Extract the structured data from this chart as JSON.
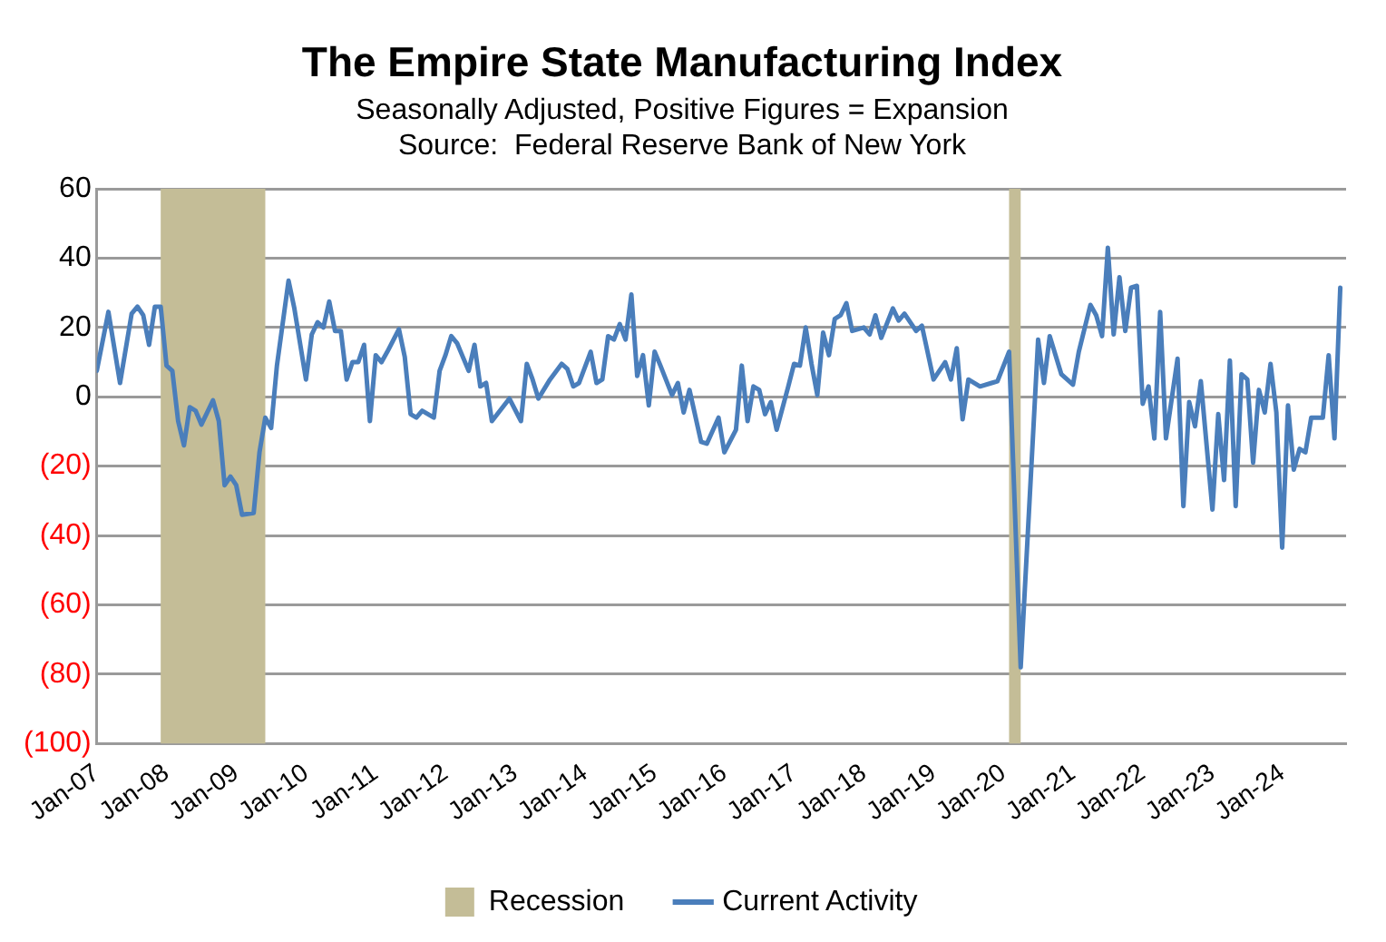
{
  "chart_data": {
    "type": "line",
    "title": "The Empire State Manufacturing Index",
    "subtitle": "Seasonally Adjusted, Positive Figures = Expansion",
    "annotations": [
      "Source:  Federal Reserve Bank of New York"
    ],
    "x": [
      "2007-01",
      "2007-03",
      "2007-05",
      "2007-07",
      "2007-08",
      "2007-09",
      "2007-10",
      "2007-11",
      "2007-12",
      "2008-01",
      "2008-02",
      "2008-03",
      "2008-04",
      "2008-05",
      "2008-06",
      "2008-07",
      "2008-09",
      "2008-10",
      "2008-11",
      "2008-12",
      "2009-01",
      "2009-02",
      "2009-04",
      "2009-05",
      "2009-06",
      "2009-07",
      "2009-08",
      "2009-10",
      "2009-11",
      "2010-01",
      "2010-02",
      "2010-03",
      "2010-04",
      "2010-05",
      "2010-06",
      "2010-07",
      "2010-08",
      "2010-09",
      "2010-10",
      "2010-11",
      "2010-12",
      "2011-01",
      "2011-02",
      "2011-03",
      "2011-05",
      "2011-06",
      "2011-07",
      "2011-08",
      "2011-09",
      "2011-11",
      "2011-12",
      "2012-01",
      "2012-02",
      "2012-03",
      "2012-05",
      "2012-06",
      "2012-07",
      "2012-08",
      "2012-09",
      "2012-12",
      "2013-02",
      "2013-03",
      "2013-04",
      "2013-05",
      "2013-07",
      "2013-09",
      "2013-10",
      "2013-11",
      "2013-12",
      "2014-02",
      "2014-03",
      "2014-04",
      "2014-05",
      "2014-06",
      "2014-07",
      "2014-08",
      "2014-09",
      "2014-10",
      "2014-11",
      "2014-12",
      "2015-01",
      "2015-02",
      "2015-04",
      "2015-05",
      "2015-06",
      "2015-07",
      "2015-09",
      "2015-10",
      "2015-12",
      "2016-01",
      "2016-03",
      "2016-04",
      "2016-05",
      "2016-06",
      "2016-07",
      "2016-08",
      "2016-09",
      "2016-10",
      "2016-12",
      "2017-01",
      "2017-02",
      "2017-03",
      "2017-04",
      "2017-05",
      "2017-06",
      "2017-07",
      "2017-08",
      "2017-09",
      "2017-10",
      "2017-11",
      "2018-01",
      "2018-02",
      "2018-03",
      "2018-04",
      "2018-06",
      "2018-07",
      "2018-08",
      "2018-10",
      "2018-11",
      "2019-01",
      "2019-03",
      "2019-04",
      "2019-05",
      "2019-06",
      "2019-07",
      "2019-09",
      "2019-11",
      "2019-12",
      "2020-02",
      "2020-04",
      "2020-07",
      "2020-08",
      "2020-09",
      "2020-11",
      "2021-01",
      "2021-02",
      "2021-04",
      "2021-05",
      "2021-06",
      "2021-07",
      "2021-08",
      "2021-09",
      "2021-10",
      "2021-11",
      "2021-12",
      "2022-01",
      "2022-02",
      "2022-03",
      "2022-04",
      "2022-05",
      "2022-07",
      "2022-08",
      "2022-09",
      "2022-10",
      "2022-11",
      "2023-01",
      "2023-02",
      "2023-03",
      "2023-04",
      "2023-05",
      "2023-06",
      "2023-07",
      "2023-08",
      "2023-09",
      "2023-10",
      "2023-11",
      "2023-12",
      "2024-01",
      "2024-02",
      "2024-03",
      "2024-04",
      "2024-05",
      "2024-06",
      "2024-08",
      "2024-09",
      "2024-10",
      "2024-11"
    ],
    "series": [
      {
        "name": "Current Activity",
        "color": "#4a7ebb",
        "values": [
          7.5,
          24.5,
          4,
          24,
          26,
          23.5,
          15,
          26,
          26,
          9,
          7.5,
          -7,
          -14,
          -3,
          -4,
          -8,
          -1,
          -7,
          -25.5,
          -23,
          -25.5,
          -34,
          -33.5,
          -16,
          -6,
          -9,
          9,
          33.5,
          25.5,
          5,
          18,
          21.5,
          20,
          27.5,
          19,
          19,
          5,
          10,
          10,
          15,
          -7,
          12,
          10,
          13,
          19.5,
          11.5,
          -5,
          -6,
          -4,
          -6,
          7.5,
          12,
          17.5,
          15.5,
          7.5,
          15,
          3,
          4,
          -7,
          -0.5,
          -7,
          9.5,
          5,
          -0.5,
          5,
          9.5,
          8,
          3,
          4,
          13,
          4,
          5,
          17.5,
          16.5,
          21,
          16.5,
          29.5,
          6,
          12,
          -2.5,
          13,
          9,
          0.5,
          4,
          -4.5,
          2,
          -13,
          -13.5,
          -6,
          -16,
          -9.5,
          9,
          -7,
          3,
          2,
          -5,
          -1.5,
          -9.5,
          3,
          9.5,
          9,
          20,
          9.5,
          0.5,
          18.5,
          12,
          22.5,
          23.5,
          27,
          19,
          20,
          18,
          23.5,
          17,
          25.5,
          22,
          24,
          19,
          20.5,
          5,
          10,
          5,
          14,
          -6.5,
          5,
          3,
          4,
          4.5,
          13,
          -78,
          16.5,
          4,
          17.5,
          6.5,
          3.5,
          13,
          26.5,
          23.5,
          17.5,
          43,
          18,
          34.5,
          19,
          31.5,
          32,
          -2,
          3,
          -12,
          24.5,
          -12,
          11,
          -31.5,
          -1.5,
          -8.5,
          4.5,
          -32.5,
          -5,
          -24,
          10.5,
          -31.5,
          6.5,
          5,
          -19,
          2,
          -4.5,
          9.5,
          -4.5,
          -43.5,
          -2.5,
          -21,
          -15,
          -16,
          -6,
          -6,
          12,
          -12,
          31.5
        ]
      }
    ],
    "bands": [
      {
        "axis": "x",
        "from": "2007-12",
        "to": "2009-06",
        "label": "Recession",
        "color": "#c4bd97"
      },
      {
        "axis": "x",
        "from": "2020-02",
        "to": "2020-04",
        "color": "#c4bd97"
      }
    ],
    "xlim": [
      "2007-01",
      "2024-12"
    ],
    "xticks": [
      {
        "value": "2007-01",
        "label": "Jan-07"
      },
      {
        "value": "2008-01",
        "label": "Jan-08"
      },
      {
        "value": "2009-01",
        "label": "Jan-09"
      },
      {
        "value": "2010-01",
        "label": "Jan-10"
      },
      {
        "value": "2011-01",
        "label": "Jan-11"
      },
      {
        "value": "2012-01",
        "label": "Jan-12"
      },
      {
        "value": "2013-01",
        "label": "Jan-13"
      },
      {
        "value": "2014-01",
        "label": "Jan-14"
      },
      {
        "value": "2015-01",
        "label": "Jan-15"
      },
      {
        "value": "2016-01",
        "label": "Jan-16"
      },
      {
        "value": "2017-01",
        "label": "Jan-17"
      },
      {
        "value": "2018-01",
        "label": "Jan-18"
      },
      {
        "value": "2019-01",
        "label": "Jan-19"
      },
      {
        "value": "2020-01",
        "label": "Jan-20"
      },
      {
        "value": "2021-01",
        "label": "Jan-21"
      },
      {
        "value": "2022-01",
        "label": "Jan-22"
      },
      {
        "value": "2023-01",
        "label": "Jan-23"
      },
      {
        "value": "2024-01",
        "label": "Jan-24"
      }
    ],
    "ylim": [
      -100,
      60
    ],
    "yticks": [
      60,
      40,
      20,
      0,
      {
        "value": -20,
        "label": "(20)"
      },
      {
        "value": -40,
        "label": "(40)"
      },
      {
        "value": -60,
        "label": "(60)"
      },
      {
        "value": -80,
        "label": "(80)"
      },
      {
        "value": -100,
        "label": "(100)"
      }
    ],
    "grid": "y",
    "legend": "bottom",
    "marker": "none",
    "line_style": "solid"
  }
}
